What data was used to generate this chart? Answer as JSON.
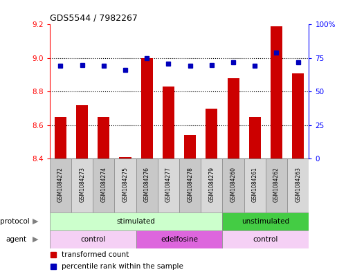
{
  "title": "GDS5544 / 7982267",
  "samples": [
    "GSM1084272",
    "GSM1084273",
    "GSM1084274",
    "GSM1084275",
    "GSM1084276",
    "GSM1084277",
    "GSM1084278",
    "GSM1084279",
    "GSM1084260",
    "GSM1084261",
    "GSM1084262",
    "GSM1084263"
  ],
  "transformed_count": [
    8.65,
    8.72,
    8.65,
    8.41,
    9.0,
    8.83,
    8.54,
    8.7,
    8.88,
    8.65,
    9.19,
    8.91
  ],
  "percentile_rank": [
    69,
    70,
    69,
    66,
    75,
    71,
    69,
    70,
    72,
    69,
    79,
    72
  ],
  "ylim_left": [
    8.4,
    9.2
  ],
  "ylim_right": [
    0,
    100
  ],
  "yticks_left": [
    8.4,
    8.6,
    8.8,
    9.0,
    9.2
  ],
  "yticks_right": [
    0,
    25,
    50,
    75,
    100
  ],
  "bar_color": "#cc0000",
  "dot_color": "#0000bb",
  "bg_color": "#ffffff",
  "protocol_groups": [
    {
      "label": "stimulated",
      "start": 0,
      "end": 8,
      "color": "#ccffcc"
    },
    {
      "label": "unstimulated",
      "start": 8,
      "end": 12,
      "color": "#44cc44"
    }
  ],
  "agent_groups": [
    {
      "label": "control",
      "start": 0,
      "end": 4,
      "color": "#f5d0f5"
    },
    {
      "label": "edelfosine",
      "start": 4,
      "end": 8,
      "color": "#dd66dd"
    },
    {
      "label": "control",
      "start": 8,
      "end": 12,
      "color": "#f5d0f5"
    }
  ],
  "legend_red_label": "transformed count",
  "legend_blue_label": "percentile rank within the sample",
  "protocol_label": "protocol",
  "agent_label": "agent",
  "sample_box_color_even": "#c8c8c8",
  "sample_box_color_odd": "#d8d8d8"
}
